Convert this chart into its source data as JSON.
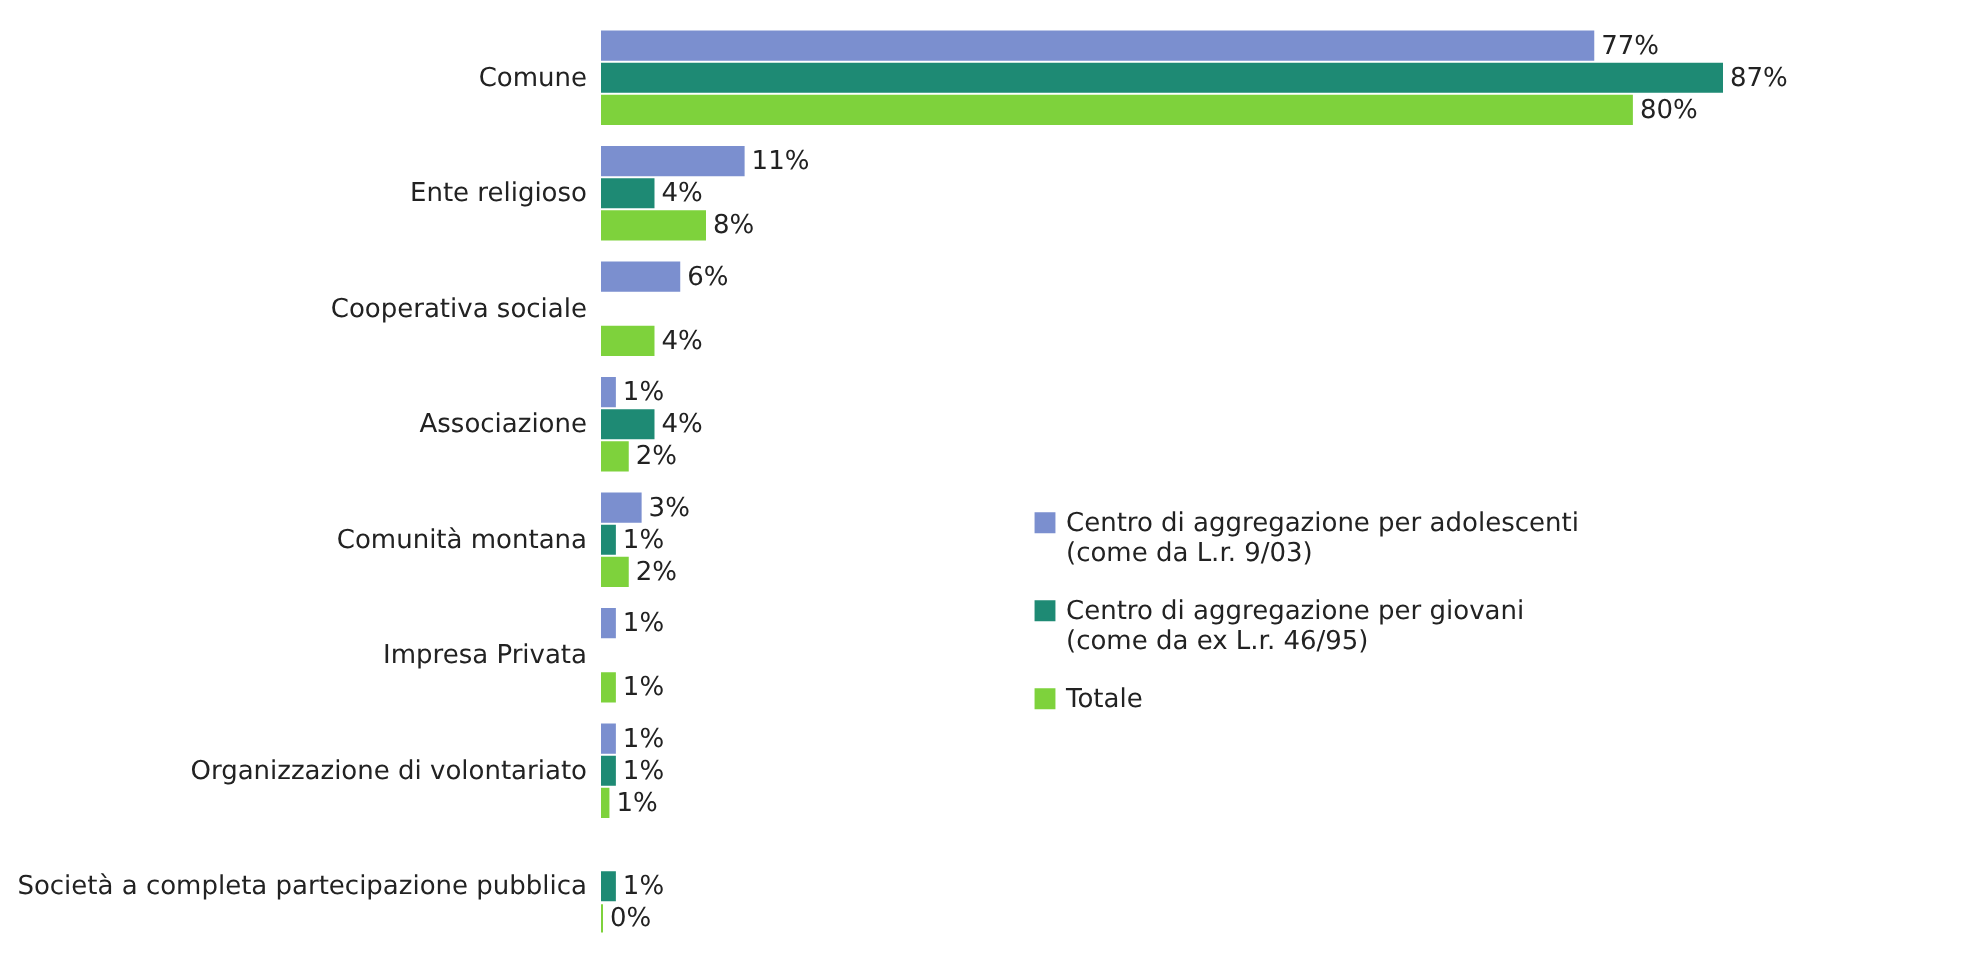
{
  "chart_data": {
    "type": "bar",
    "orientation": "horizontal",
    "categories": [
      "Comune",
      "Ente religioso",
      "Cooperativa sociale",
      "Associazione",
      "Comunità montana",
      "Impresa Privata",
      "Organizzazione di volontariato",
      "Società a completa partecipazione pubblica"
    ],
    "series": [
      {
        "name": "Centro di aggregazione per adolescenti\n(come da L.r. 9/03)",
        "color": "#7b8fcf",
        "values": [
          77,
          11,
          6,
          1,
          3,
          1,
          1,
          null
        ],
        "value_labels": [
          "77%",
          "11%",
          "6%",
          "1%",
          "3%",
          "1%",
          "1%",
          null
        ]
      },
      {
        "name": "Centro di aggregazione per giovani\n(come da ex L.r. 46/95)",
        "color": "#1e8a74",
        "values": [
          87,
          4,
          null,
          4,
          1,
          null,
          1,
          1
        ],
        "value_labels": [
          "87%",
          "4%",
          null,
          "4%",
          "1%",
          null,
          "1%",
          "1%"
        ]
      },
      {
        "name": "Totale",
        "color": "#7ed23c",
        "values": [
          80,
          8,
          4,
          2,
          2,
          1,
          0.5,
          0
        ],
        "value_labels": [
          "80%",
          "8%",
          "4%",
          "2%",
          "2%",
          "1%",
          "1%",
          "0%"
        ]
      }
    ],
    "legend": "right"
  }
}
